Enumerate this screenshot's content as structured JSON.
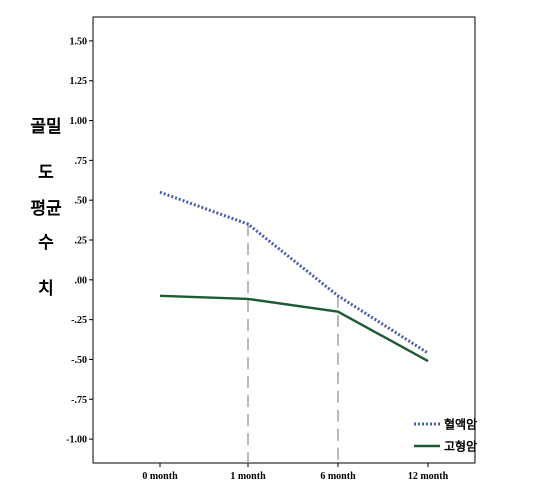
{
  "chart_data": {
    "type": "line",
    "title": "",
    "xlabel": "",
    "ylabel": "골밀도 평균 수치",
    "ylabel_lines": [
      "골밀",
      "도",
      "평균",
      "수",
      "치"
    ],
    "categories": [
      "0 month",
      "1 month",
      "6 month",
      "12 month"
    ],
    "yticks": [
      1.5,
      1.25,
      1.0,
      0.75,
      0.5,
      0.25,
      0.0,
      -0.25,
      -0.5,
      -0.75,
      -1.0
    ],
    "ytick_labels": [
      "1.50",
      "1.25",
      "1.00",
      ".75",
      ".50",
      ".25",
      ".00",
      "-.25",
      "-.50",
      "-.75",
      "-1.00"
    ],
    "ylim": [
      -1.15,
      1.65
    ],
    "grid": false,
    "legend_position": "bottom-right",
    "reference_lines_at": [
      "1 month",
      "6 month"
    ],
    "series": [
      {
        "name": "혈액암",
        "values": [
          0.55,
          0.35,
          -0.1,
          -0.46
        ],
        "color": "#4a5cb0",
        "style": "dotted"
      },
      {
        "name": "고형암",
        "values": [
          -0.1,
          -0.12,
          -0.2,
          -0.51
        ],
        "color": "#1e5a32",
        "style": "solid"
      }
    ]
  }
}
